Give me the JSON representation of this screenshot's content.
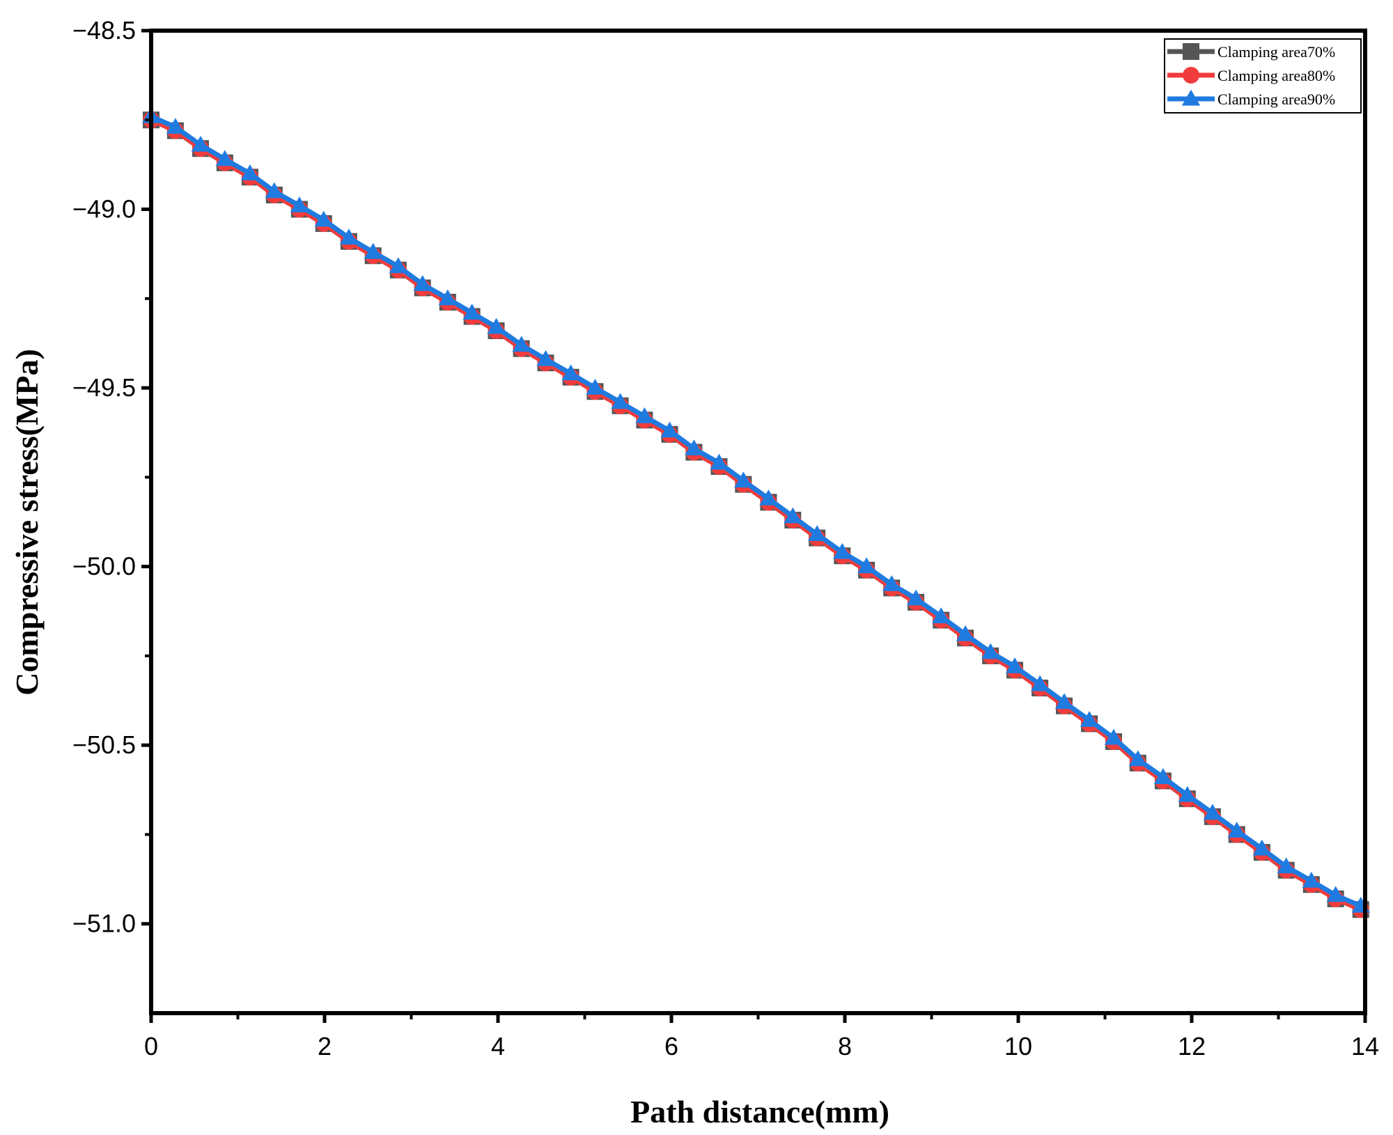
{
  "chart_data": {
    "type": "line",
    "title": "",
    "xlabel": "Path distance(mm)",
    "ylabel": "Compressive stress(MPa)",
    "xlim": [
      0,
      14
    ],
    "ylim": [
      -51.25,
      -48.5
    ],
    "x_ticks": [
      "0",
      "2",
      "4",
      "6",
      "8",
      "10",
      "12",
      "14"
    ],
    "y_ticks": [
      "−48.5",
      "−49.0",
      "−49.5",
      "−50.0",
      "−50.5",
      "−51.0"
    ],
    "grid": false,
    "legend_position": "top-right",
    "x": [
      0,
      0.28,
      0.57,
      0.85,
      1.14,
      1.42,
      1.71,
      1.99,
      2.28,
      2.56,
      2.85,
      3.13,
      3.42,
      3.7,
      3.98,
      4.27,
      4.55,
      4.84,
      5.12,
      5.41,
      5.69,
      5.98,
      6.26,
      6.55,
      6.83,
      7.12,
      7.4,
      7.68,
      7.97,
      8.25,
      8.54,
      8.82,
      9.11,
      9.39,
      9.68,
      9.96,
      10.25,
      10.53,
      10.82,
      11.1,
      11.38,
      11.67,
      11.95,
      12.24,
      12.52,
      12.81,
      13.09,
      13.38,
      13.66,
      13.95
    ],
    "series": [
      {
        "name": "Clamping area70%",
        "color": "#555555",
        "marker": "square",
        "values": [
          -48.75,
          -48.78,
          -48.83,
          -48.87,
          -48.91,
          -48.96,
          -49.0,
          -49.04,
          -49.09,
          -49.13,
          -49.17,
          -49.22,
          -49.26,
          -49.3,
          -49.34,
          -49.39,
          -49.43,
          -49.47,
          -49.51,
          -49.55,
          -49.59,
          -49.63,
          -49.68,
          -49.72,
          -49.77,
          -49.82,
          -49.87,
          -49.92,
          -49.97,
          -50.01,
          -50.06,
          -50.1,
          -50.15,
          -50.2,
          -50.25,
          -50.29,
          -50.34,
          -50.39,
          -50.44,
          -50.49,
          -50.55,
          -50.6,
          -50.65,
          -50.7,
          -50.75,
          -50.8,
          -50.85,
          -50.89,
          -50.93,
          -50.96
        ]
      },
      {
        "name": "Clamping area80%",
        "color": "#f03c3c",
        "marker": "circle",
        "values": [
          -48.75,
          -48.78,
          -48.83,
          -48.87,
          -48.91,
          -48.96,
          -49.0,
          -49.04,
          -49.09,
          -49.13,
          -49.17,
          -49.22,
          -49.26,
          -49.3,
          -49.34,
          -49.39,
          -49.43,
          -49.47,
          -49.51,
          -49.55,
          -49.59,
          -49.63,
          -49.68,
          -49.72,
          -49.77,
          -49.82,
          -49.87,
          -49.92,
          -49.97,
          -50.01,
          -50.06,
          -50.1,
          -50.15,
          -50.2,
          -50.25,
          -50.29,
          -50.34,
          -50.39,
          -50.44,
          -50.49,
          -50.55,
          -50.6,
          -50.65,
          -50.7,
          -50.75,
          -50.8,
          -50.85,
          -50.89,
          -50.93,
          -50.96
        ]
      },
      {
        "name": "Clamping area90%",
        "color": "#1f7be0",
        "marker": "triangle",
        "values": [
          -48.74,
          -48.77,
          -48.82,
          -48.86,
          -48.9,
          -48.95,
          -48.99,
          -49.03,
          -49.08,
          -49.12,
          -49.16,
          -49.21,
          -49.25,
          -49.29,
          -49.33,
          -49.38,
          -49.42,
          -49.46,
          -49.5,
          -49.54,
          -49.58,
          -49.62,
          -49.67,
          -49.71,
          -49.76,
          -49.81,
          -49.86,
          -49.91,
          -49.96,
          -50.0,
          -50.05,
          -50.09,
          -50.14,
          -50.19,
          -50.24,
          -50.28,
          -50.33,
          -50.38,
          -50.43,
          -50.48,
          -50.54,
          -50.59,
          -50.64,
          -50.69,
          -50.74,
          -50.79,
          -50.84,
          -50.88,
          -50.92,
          -50.95
        ]
      }
    ]
  }
}
